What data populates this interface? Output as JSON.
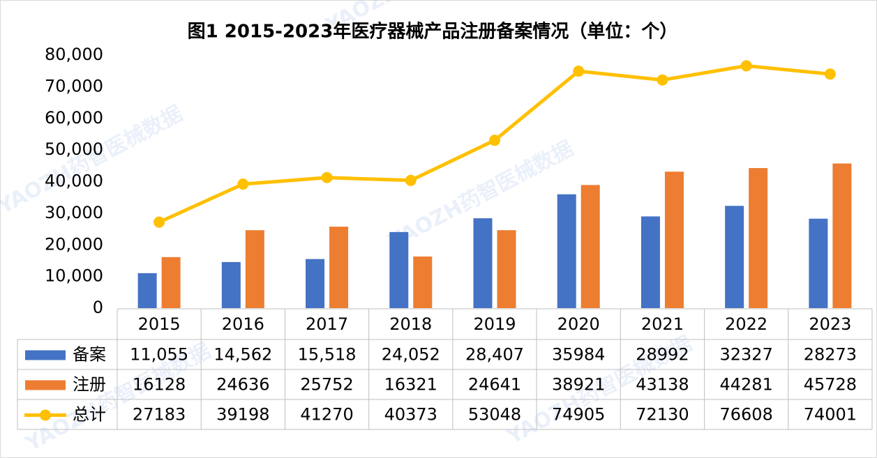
{
  "chart_data": {
    "type": "bar",
    "title": "图1 2015-2023年医疗器械产品注册备案情况（单位：个）",
    "watermark": "YAOZH药智医械数据",
    "categories": [
      "2015",
      "2016",
      "2017",
      "2018",
      "2019",
      "2020",
      "2021",
      "2022",
      "2023"
    ],
    "series": [
      {
        "name": "备案",
        "color": "#4472c4",
        "type": "bar",
        "values": [
          11055,
          14562,
          15518,
          24052,
          28407,
          35984,
          28992,
          32327,
          28273
        ],
        "value_labels": [
          "11,055",
          "14,562",
          "15,518",
          "24,052",
          "28,407",
          "35984",
          "28992",
          "32327",
          "28273"
        ]
      },
      {
        "name": "注册",
        "color": "#ed7d31",
        "type": "bar",
        "values": [
          16128,
          24636,
          25752,
          16321,
          24641,
          38921,
          43138,
          44281,
          45728
        ]
      },
      {
        "name": "总计",
        "color": "#ffc000",
        "type": "line",
        "values": [
          27183,
          39198,
          41270,
          40373,
          53048,
          74905,
          72130,
          76608,
          74001
        ]
      }
    ],
    "ylim": [
      0,
      80000
    ],
    "yticks": [
      0,
      {
        "value": 10000,
        "label": "10,000"
      },
      {
        "value": 20000,
        "label": "20,000"
      },
      {
        "value": 30000,
        "label": "30,000"
      },
      {
        "value": 40000,
        "label": "40,000"
      },
      {
        "value": 50000,
        "label": "50,000"
      },
      {
        "value": 60000,
        "label": "60,000"
      },
      {
        "value": 70000,
        "label": "70,000"
      },
      {
        "value": 80000,
        "label": "80,000"
      }
    ],
    "grid": false
  }
}
